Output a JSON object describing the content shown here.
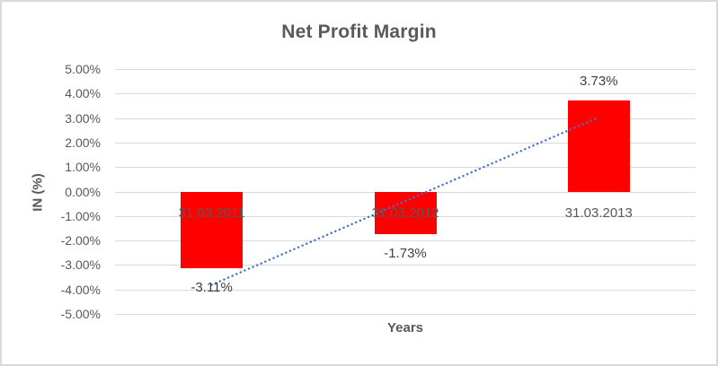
{
  "chart_data": {
    "type": "bar",
    "title": "Net Profit Margin",
    "xlabel": "Years",
    "ylabel": "IN (%)",
    "categories": [
      "31.03.2011",
      "31.03.2012",
      "31.03.2013"
    ],
    "values": [
      -3.11,
      -1.73,
      3.73
    ],
    "data_labels": [
      "-3.11%",
      "-1.73%",
      "3.73%"
    ],
    "ylim": [
      -5,
      5
    ],
    "ytick_step": 1,
    "ytick_labels": [
      "5.00%",
      "4.00%",
      "3.00%",
      "2.00%",
      "1.00%",
      "0.00%",
      "-1.00%",
      "-2.00%",
      "-3.00%",
      "-4.00%",
      "-5.00%"
    ],
    "grid": true,
    "legend": "none",
    "trendline": {
      "type": "linear",
      "style": "dotted",
      "color": "#4472C4",
      "fitted_endpoints": [
        -3.79,
        3.05
      ]
    },
    "colors": {
      "bar": "#FF0000",
      "grid": "#D9D9D9",
      "title_text": "#595959",
      "axis_text": "#595959",
      "data_label_text": "#404040",
      "background": "#FFFFFF",
      "border": "#D9D9D9"
    }
  }
}
